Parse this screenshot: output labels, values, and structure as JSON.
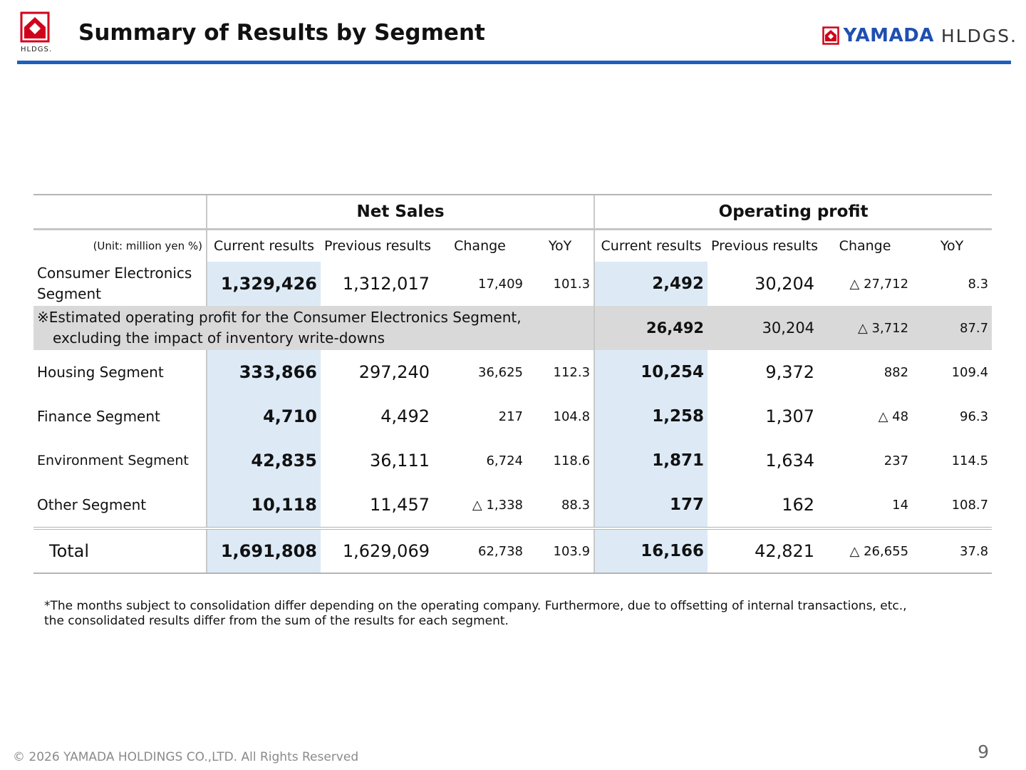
{
  "header": {
    "logo_left_caption": "HLDGS.",
    "title": "Summary of Results by Segment",
    "logo_right_brand": "YAMADA",
    "logo_right_suffix": "HLDGS.",
    "accent_color": "#1f5fbf",
    "logo_red": "#d0021b"
  },
  "table": {
    "groups": {
      "net_sales": "Net Sales",
      "operating_profit": "Operating profit"
    },
    "unit": "(Unit: million yen %)",
    "columns": {
      "current": "Current results",
      "previous": "Previous results",
      "change": "Change",
      "yoy": "YoY"
    },
    "rows": [
      {
        "segment": "Consumer Electronics Segment",
        "ns_current": "1,329,426",
        "ns_previous": "1,312,017",
        "ns_change": "17,409",
        "ns_yoy": "101.3",
        "op_current": "2,492",
        "op_previous": "30,204",
        "op_change": "△ 27,712",
        "op_yoy": "8.3"
      },
      {
        "segment": "Housing Segment",
        "ns_current": "333,866",
        "ns_previous": "297,240",
        "ns_change": "36,625",
        "ns_yoy": "112.3",
        "op_current": "10,254",
        "op_previous": "9,372",
        "op_change": "882",
        "op_yoy": "109.4"
      },
      {
        "segment": "Finance Segment",
        "ns_current": "4,710",
        "ns_previous": "4,492",
        "ns_change": "217",
        "ns_yoy": "104.8",
        "op_current": "1,258",
        "op_previous": "1,307",
        "op_change": "△ 48",
        "op_yoy": "96.3"
      },
      {
        "segment": "Environment Segment",
        "ns_current": "42,835",
        "ns_previous": "36,111",
        "ns_change": "6,724",
        "ns_yoy": "118.6",
        "op_current": "1,871",
        "op_previous": "1,634",
        "op_change": "237",
        "op_yoy": "114.5"
      },
      {
        "segment": "Other Segment",
        "ns_current": "10,118",
        "ns_previous": "11,457",
        "ns_change": "△ 1,338",
        "ns_yoy": "88.3",
        "op_current": "177",
        "op_previous": "162",
        "op_change": "14",
        "op_yoy": "108.7"
      }
    ],
    "special": {
      "note_line1": "※Estimated operating profit for the Consumer Electronics Segment,",
      "note_line2": "excluding the impact of inventory write-downs",
      "op_current": "26,492",
      "op_previous": "30,204",
      "op_change": "△ 3,712",
      "op_yoy": "87.7"
    },
    "total": {
      "label": "Total",
      "ns_current": "1,691,808",
      "ns_previous": "1,629,069",
      "ns_change": "62,738",
      "ns_yoy": "103.9",
      "op_current": "16,166",
      "op_previous": "42,821",
      "op_change": "△ 26,655",
      "op_yoy": "37.8"
    }
  },
  "footnote": {
    "line1": "*The months subject to consolidation differ depending on the operating company. Furthermore, due to offsetting of internal transactions, etc.,",
    "line2": "the consolidated results differ from the sum of the results for each segment."
  },
  "footer": {
    "copyright": "© 2026 YAMADA HOLDINGS CO.,LTD. All Rights Reserved",
    "page_number": "9"
  }
}
